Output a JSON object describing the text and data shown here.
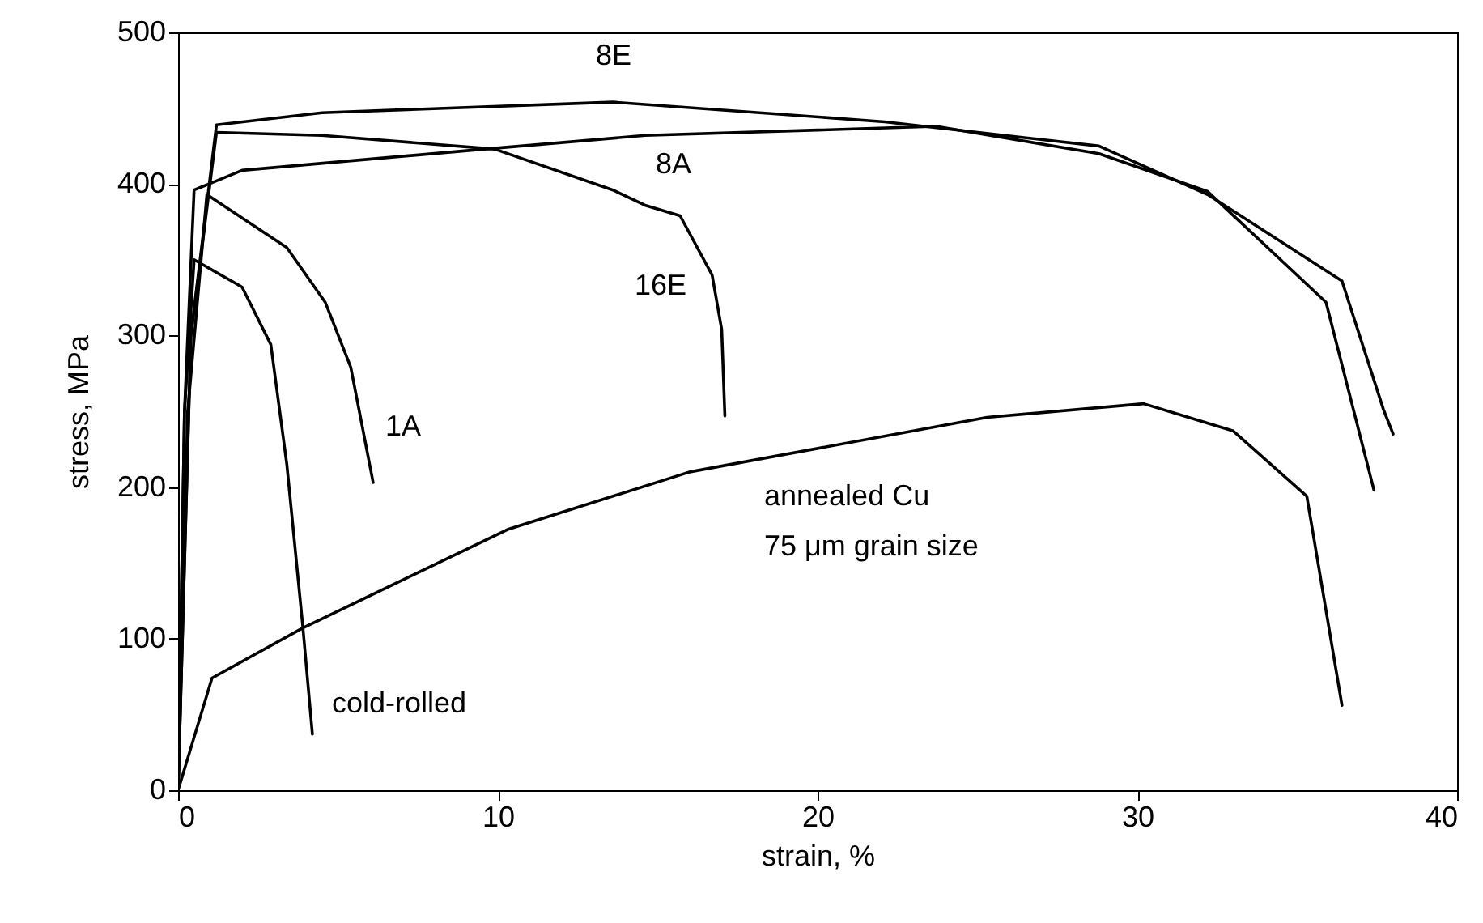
{
  "chart_data": {
    "type": "line",
    "xlabel": "strain, %",
    "ylabel": "stress, MPa",
    "xlim": [
      0,
      40
    ],
    "ylim": [
      0,
      500
    ],
    "xticks": [
      0,
      10,
      20,
      30,
      40
    ],
    "yticks": [
      0,
      100,
      200,
      300,
      400,
      500
    ],
    "marker": "none",
    "line_style": "solid",
    "series": [
      {
        "name": "cold-rolled",
        "color": "#000000",
        "x": [
          0,
          0.2,
          0.5,
          2.0,
          2.9,
          3.4,
          3.9,
          4.2
        ],
        "values": [
          0,
          250,
          350,
          332,
          294,
          215,
          108,
          37
        ]
      },
      {
        "name": "1A",
        "color": "#000000",
        "x": [
          0,
          0.3,
          0.9,
          3.4,
          4.6,
          5.4,
          6.1
        ],
        "values": [
          0,
          250,
          393,
          358,
          322,
          279,
          203
        ]
      },
      {
        "name": "annealed Cu",
        "color": "#000000",
        "x": [
          0,
          0.2,
          1.06,
          3.9,
          10.3,
          16.0,
          25.3,
          30.2,
          33.0,
          35.3,
          36.4
        ],
        "values": [
          0,
          14,
          74,
          107,
          172,
          210,
          246,
          255,
          237,
          194,
          56
        ]
      },
      {
        "name": "16E",
        "color": "#000000",
        "x": [
          0,
          0.4,
          1.2,
          4.5,
          9.9,
          13.6,
          14.6,
          15.7,
          16.7,
          17.0,
          17.1
        ],
        "values": [
          0,
          300,
          434,
          432,
          423,
          396,
          386,
          379,
          340,
          304,
          247
        ]
      },
      {
        "name": "8E",
        "color": "#000000",
        "x": [
          0,
          0.4,
          1.2,
          4.5,
          13.6,
          22.1,
          28.8,
          32.2,
          36.4,
          37.7,
          38.0
        ],
        "values": [
          0,
          300,
          439,
          447,
          454,
          441,
          425,
          393,
          336,
          251,
          235
        ]
      },
      {
        "name": "8A",
        "color": "#000000",
        "x": [
          0,
          0.2,
          0.5,
          2.0,
          9.6,
          14.6,
          23.7,
          28.8,
          32.2,
          35.9,
          37.4
        ],
        "values": [
          0,
          250,
          396,
          409,
          423,
          432,
          438,
          420,
          395,
          322,
          198
        ]
      }
    ],
    "annotations": [
      "75 μm grain size"
    ]
  }
}
